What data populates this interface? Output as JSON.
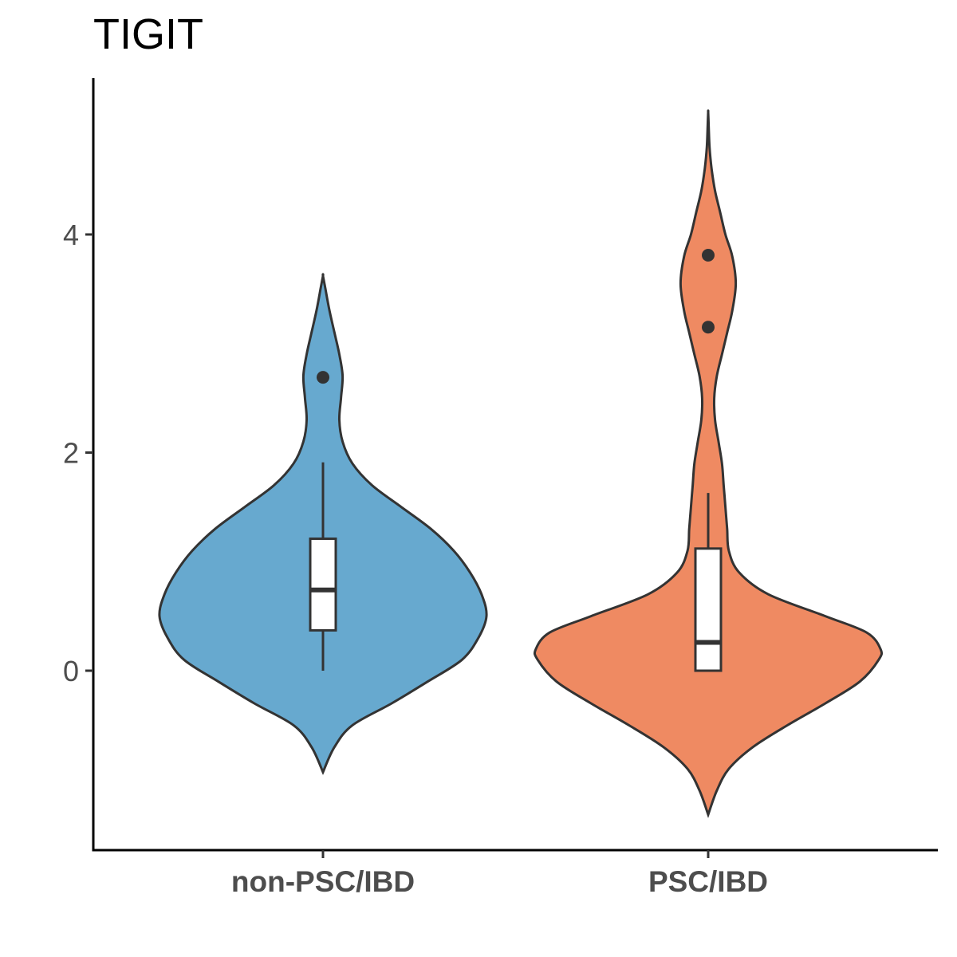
{
  "chart_data": {
    "type": "violin",
    "title": "TIGIT",
    "xlabel": "",
    "ylabel": "",
    "ylim": [
      -0.82,
      5.1
    ],
    "yticks": [
      0,
      2,
      4
    ],
    "categories": [
      "non-PSC/IBD",
      "PSC/IBD"
    ],
    "grid": false,
    "legend": "none",
    "series": [
      {
        "category": "non-PSC/IBD",
        "color": "#67a9cf",
        "range": [
          -0.93,
          3.62
        ],
        "density": [
          [
            -0.93,
            0.0
          ],
          [
            -0.7,
            0.07
          ],
          [
            -0.5,
            0.18
          ],
          [
            -0.3,
            0.42
          ],
          [
            -0.1,
            0.64
          ],
          [
            0.1,
            0.85
          ],
          [
            0.3,
            0.95
          ],
          [
            0.5,
            1.0
          ],
          [
            0.7,
            0.97
          ],
          [
            0.9,
            0.9
          ],
          [
            1.1,
            0.8
          ],
          [
            1.3,
            0.66
          ],
          [
            1.5,
            0.48
          ],
          [
            1.7,
            0.3
          ],
          [
            1.9,
            0.18
          ],
          [
            2.1,
            0.12
          ],
          [
            2.3,
            0.1
          ],
          [
            2.5,
            0.11
          ],
          [
            2.7,
            0.12
          ],
          [
            2.9,
            0.1
          ],
          [
            3.1,
            0.07
          ],
          [
            3.3,
            0.04
          ],
          [
            3.5,
            0.015
          ],
          [
            3.62,
            0.0
          ]
        ],
        "box": {
          "whisker_low": 0.0,
          "q1": 0.37,
          "median": 0.74,
          "q3": 1.21,
          "whisker_high": 1.91
        },
        "outliers": [
          2.69
        ]
      },
      {
        "category": "PSC/IBD",
        "color": "#ef8a62",
        "range": [
          -1.32,
          5.12
        ],
        "density": [
          [
            -1.32,
            0.0
          ],
          [
            -1.1,
            0.05
          ],
          [
            -0.9,
            0.12
          ],
          [
            -0.7,
            0.26
          ],
          [
            -0.5,
            0.46
          ],
          [
            -0.3,
            0.68
          ],
          [
            -0.1,
            0.88
          ],
          [
            0.1,
            0.99
          ],
          [
            0.2,
            1.0
          ],
          [
            0.35,
            0.92
          ],
          [
            0.5,
            0.68
          ],
          [
            0.7,
            0.35
          ],
          [
            0.9,
            0.18
          ],
          [
            1.1,
            0.12
          ],
          [
            1.3,
            0.11
          ],
          [
            1.5,
            0.1
          ],
          [
            1.7,
            0.09
          ],
          [
            1.9,
            0.08
          ],
          [
            2.1,
            0.06
          ],
          [
            2.3,
            0.04
          ],
          [
            2.5,
            0.035
          ],
          [
            2.7,
            0.05
          ],
          [
            2.9,
            0.08
          ],
          [
            3.1,
            0.11
          ],
          [
            3.3,
            0.14
          ],
          [
            3.55,
            0.16
          ],
          [
            3.8,
            0.14
          ],
          [
            4.0,
            0.1
          ],
          [
            4.2,
            0.07
          ],
          [
            4.4,
            0.04
          ],
          [
            4.6,
            0.02
          ],
          [
            4.8,
            0.008
          ],
          [
            5.0,
            0.003
          ],
          [
            5.12,
            0.0
          ]
        ],
        "box": {
          "whisker_low": 0.0,
          "q1": 0.0,
          "median": 0.26,
          "q3": 1.12,
          "whisker_high": 1.63
        },
        "outliers": [
          3.81,
          3.15
        ]
      }
    ]
  }
}
